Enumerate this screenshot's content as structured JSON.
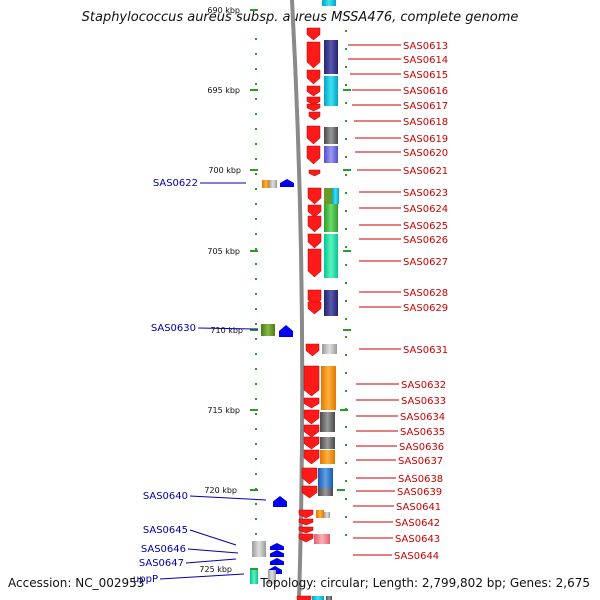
{
  "title": "Staphylococcus aureus subsp. aureus MSSA476, complete genome",
  "footer": {
    "accession": "Accession: NC_002953",
    "summary": "Topology: circular; Length: 2,799,802 bp; Genes: 2,675"
  },
  "scale_labels": [
    "690 kbp",
    "695 kbp",
    "700 kbp",
    "705 kbp",
    "710 kbp",
    "715 kbp",
    "720 kbp",
    "725 kbp"
  ],
  "right_genes": [
    "SAS0613",
    "SAS0614",
    "SAS0615",
    "SAS0616",
    "SAS0617",
    "SAS0618",
    "SAS0619",
    "SAS0620",
    "SAS0621",
    "SAS0623",
    "SAS0624",
    "SAS0625",
    "SAS0626",
    "SAS0627",
    "SAS0628",
    "SAS0629",
    "SAS0631",
    "SAS0632",
    "SAS0633",
    "SAS0634",
    "SAS0635",
    "SAS0636",
    "SAS0637",
    "SAS0638",
    "SAS0639",
    "SAS0641",
    "SAS0642",
    "SAS0643",
    "SAS0644"
  ],
  "left_genes": [
    "SAS0622",
    "SAS0630",
    "SAS0640",
    "SAS0645",
    "SAS0646",
    "SAS0647",
    "uppP"
  ],
  "colors": {
    "right_label": "#cc0000",
    "left_label": "#0000aa",
    "forward_arrow": "#ff1a1a",
    "reverse_arrow": "#0000ee",
    "tick": "#2a9a2a",
    "backbone": "#888888"
  }
}
